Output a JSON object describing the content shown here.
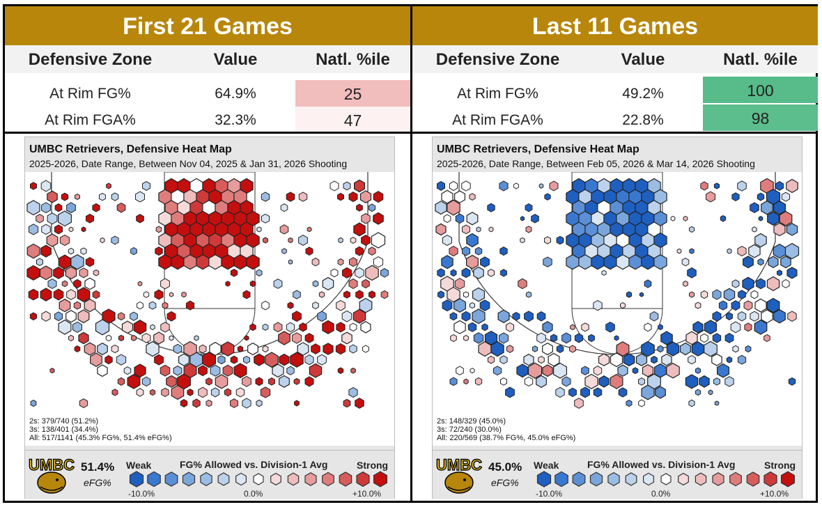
{
  "panels": [
    {
      "title": "First 21 Games",
      "headers": [
        "Defensive Zone",
        "Value",
        "Natl. %ile"
      ],
      "rows": [
        {
          "zone": "At Rim FG%",
          "value": "64.9%",
          "pct": "25",
          "pct_color": "#f2bdbd"
        },
        {
          "zone": "At Rim FGA%",
          "value": "32.3%",
          "pct": "47",
          "pct_color": "#fdf1f1"
        }
      ],
      "map_title": "UMBC Retrievers, Defensive Heat Map",
      "map_subtitle": "2025-2026, Date Range, Between Nov 04, 2025 & Jan 31, 2026 Shooting",
      "stats": [
        "2s: 379/740 (51.2%)",
        "3s: 138/401 (34.4%)",
        "All: 517/1141 (45.3% FG%, 51.4% eFG%)"
      ],
      "efg": "51.4%",
      "hex_bias": 0.35
    },
    {
      "title": "Last 11 Games",
      "headers": [
        "Defensive Zone",
        "Value",
        "Natl. %ile"
      ],
      "rows": [
        {
          "zone": "At Rim FG%",
          "value": "49.2%",
          "pct": "100",
          "pct_color": "#57bb8a"
        },
        {
          "zone": "At Rim FGA%",
          "value": "22.8%",
          "pct": "98",
          "pct_color": "#5cbe8d"
        }
      ],
      "map_title": "UMBC Retrievers, Defensive Heat Map",
      "map_subtitle": "2025-2026, Date Range, Between Feb 05, 2026 & Mar 14, 2026 Shooting",
      "stats": [
        "2s: 148/329 (45.0%)",
        "3s: 72/240 (30.0%)",
        "All: 220/569 (38.7% FG%, 45.0% eFG%)"
      ],
      "efg": "45.0%",
      "hex_bias": -0.35
    }
  ],
  "legend": {
    "efg_label": "eFG%",
    "title": "FG% Allowed vs. Division-1 Avg",
    "weak": "Weak",
    "strong": "Strong",
    "low": "-10.0%",
    "mid": "0.0%",
    "high": "+10.0%",
    "scale_colors": [
      "#1f5fbf",
      "#3a78d0",
      "#5b8fd6",
      "#7aa6dc",
      "#9bbde4",
      "#bcd2ec",
      "#dbe6f3",
      "#ffffff",
      "#f5dada",
      "#eebcbc",
      "#e69c9c",
      "#df7d7d",
      "#d75c5c",
      "#ce3a3a",
      "#c40f0f"
    ]
  },
  "logo_text": "UMBC",
  "chart_data": [
    {
      "type": "table",
      "title": "First 21 Games",
      "columns": [
        "Defensive Zone",
        "Value",
        "Natl. %ile"
      ],
      "rows": [
        [
          "At Rim FG%",
          "64.9%",
          25
        ],
        [
          "At Rim FGA%",
          "32.3%",
          47
        ]
      ]
    },
    {
      "type": "table",
      "title": "Last 11 Games",
      "columns": [
        "Defensive Zone",
        "Value",
        "Natl. %ile"
      ],
      "rows": [
        [
          "At Rim FG%",
          "49.2%",
          100
        ],
        [
          "At Rim FGA%",
          "22.8%",
          98
        ]
      ]
    },
    {
      "type": "heatmap",
      "title": "UMBC Retrievers, Defensive Heat Map",
      "subtitle": "2025-2026, Date Range, Between Nov 04, 2025 & Jan 31, 2026 Shooting",
      "twos": {
        "made": 379,
        "att": 740,
        "pct": 51.2
      },
      "threes": {
        "made": 138,
        "att": 401,
        "pct": 34.4
      },
      "all": {
        "made": 517,
        "att": 1141,
        "fg_pct": 45.3,
        "efg_pct": 51.4
      }
    },
    {
      "type": "heatmap",
      "title": "UMBC Retrievers, Defensive Heat Map",
      "subtitle": "2025-2026, Date Range, Between Feb 05, 2026 & Mar 14, 2026 Shooting",
      "twos": {
        "made": 148,
        "att": 329,
        "pct": 45.0
      },
      "threes": {
        "made": 72,
        "att": 240,
        "pct": 30.0
      },
      "all": {
        "made": 220,
        "att": 569,
        "fg_pct": 38.7,
        "efg_pct": 45.0
      }
    }
  ]
}
